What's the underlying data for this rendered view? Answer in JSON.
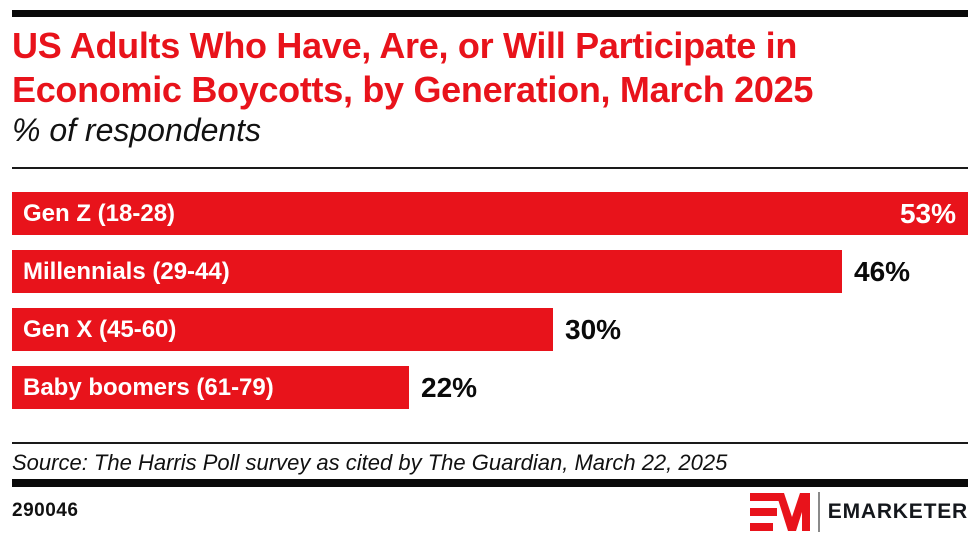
{
  "colors": {
    "accent_red": "#e8131b",
    "rule_black": "#0a0a0a",
    "divider_gray": "#8a8a8a",
    "bar_label_white": "#ffffff",
    "value_label_black": "#0a0a0a"
  },
  "header": {
    "title_line1": "US Adults Who Have, Are, or Will Participate in",
    "title_line2": "Economic Boycotts, by Generation, March 2025",
    "subtitle": "% of respondents"
  },
  "chart_data": {
    "type": "bar",
    "orientation": "horizontal",
    "title": "US Adults Who Have, Are, or Will Participate in Economic Boycotts, by Generation, March 2025",
    "subtitle": "% of respondents",
    "categories": [
      "Gen Z (18-28)",
      "Millennials (29-44)",
      "Gen X (45-60)",
      "Baby boomers (61-79)"
    ],
    "values": [
      53,
      46,
      30,
      22
    ],
    "value_labels": [
      "53%",
      "46%",
      "30%",
      "22%"
    ],
    "unit": "%",
    "xlim": [
      0,
      53
    ],
    "bar_color": "#e8131b",
    "grid": false,
    "legend": "none",
    "value_label_placement": [
      "inside-end",
      "outside-end",
      "outside-end",
      "outside-end"
    ]
  },
  "footer": {
    "source_text": "Source: The Harris Poll survey as cited by The Guardian, March 22, 2025",
    "chart_id": "290046",
    "brand_name": "EMARKETER",
    "logo_mark": "em-monogram"
  }
}
